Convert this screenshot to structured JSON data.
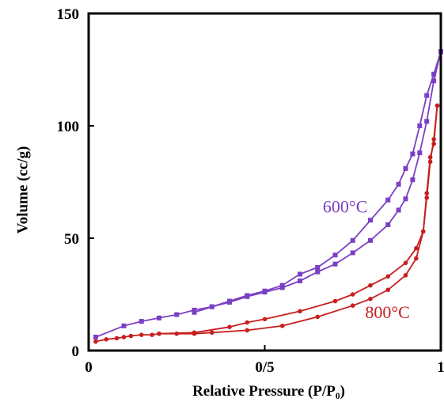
{
  "chart_data": {
    "type": "line",
    "title": "",
    "xlabel": "Relative Pressure (P/P₀)",
    "ylabel": "Volume (cc/g)",
    "xlim": [
      0,
      1
    ],
    "ylim": [
      0,
      150
    ],
    "x_tick_labels": [
      {
        "value": 0,
        "label": "0"
      },
      {
        "value": 0.5,
        "label": "0/5"
      },
      {
        "value": 1,
        "label": "1"
      }
    ],
    "y_tick_labels": [
      {
        "value": 0,
        "label": "0"
      },
      {
        "value": 50,
        "label": "50"
      },
      {
        "value": 100,
        "label": "100"
      },
      {
        "value": 150,
        "label": "150"
      }
    ],
    "grid": false,
    "series": [
      {
        "name": "600°C",
        "color": "#7b3fc4",
        "marker": "square",
        "adsorption": [
          [
            0.02,
            6
          ],
          [
            0.1,
            11
          ],
          [
            0.15,
            13
          ],
          [
            0.2,
            14.5
          ],
          [
            0.25,
            16
          ],
          [
            0.3,
            18
          ],
          [
            0.35,
            19.5
          ],
          [
            0.4,
            21.5
          ],
          [
            0.45,
            24
          ],
          [
            0.5,
            26
          ],
          [
            0.55,
            28
          ],
          [
            0.6,
            31
          ],
          [
            0.65,
            35
          ],
          [
            0.7,
            38.5
          ],
          [
            0.75,
            43.5
          ],
          [
            0.8,
            49
          ],
          [
            0.85,
            56
          ],
          [
            0.88,
            62.5
          ],
          [
            0.9,
            67.5
          ],
          [
            0.92,
            76
          ],
          [
            0.94,
            88
          ],
          [
            0.96,
            102
          ],
          [
            0.98,
            120
          ],
          [
            1.0,
            133
          ]
        ],
        "desorption": [
          [
            1.0,
            133
          ],
          [
            0.98,
            123
          ],
          [
            0.96,
            113.5
          ],
          [
            0.94,
            100
          ],
          [
            0.92,
            87.5
          ],
          [
            0.9,
            81
          ],
          [
            0.88,
            74
          ],
          [
            0.85,
            67
          ],
          [
            0.8,
            58
          ],
          [
            0.75,
            49
          ],
          [
            0.7,
            42.5
          ],
          [
            0.65,
            37
          ],
          [
            0.6,
            34
          ],
          [
            0.55,
            29
          ],
          [
            0.5,
            26.5
          ],
          [
            0.45,
            24.5
          ],
          [
            0.4,
            22
          ],
          [
            0.35,
            19.5
          ],
          [
            0.3,
            17
          ]
        ]
      },
      {
        "name": "800°C",
        "color": "#c81e1e",
        "marker": "circle",
        "adsorption": [
          [
            0.02,
            4
          ],
          [
            0.05,
            5
          ],
          [
            0.08,
            5.5
          ],
          [
            0.1,
            6
          ],
          [
            0.12,
            6.5
          ],
          [
            0.15,
            7
          ],
          [
            0.18,
            7
          ],
          [
            0.2,
            7.5
          ],
          [
            0.25,
            7.5
          ],
          [
            0.3,
            7.5
          ],
          [
            0.35,
            8
          ],
          [
            0.45,
            9
          ],
          [
            0.55,
            11
          ],
          [
            0.65,
            15
          ],
          [
            0.75,
            20
          ],
          [
            0.8,
            23
          ],
          [
            0.85,
            27
          ],
          [
            0.9,
            33.5
          ],
          [
            0.93,
            41
          ],
          [
            0.95,
            53
          ],
          [
            0.96,
            70
          ],
          [
            0.97,
            86
          ],
          [
            0.98,
            92
          ],
          [
            0.99,
            109
          ]
        ],
        "desorption": [
          [
            0.99,
            109
          ],
          [
            0.98,
            94
          ],
          [
            0.97,
            84
          ],
          [
            0.96,
            68
          ],
          [
            0.95,
            53
          ],
          [
            0.93,
            45.5
          ],
          [
            0.9,
            39
          ],
          [
            0.85,
            33
          ],
          [
            0.8,
            29
          ],
          [
            0.75,
            25
          ],
          [
            0.7,
            22
          ],
          [
            0.6,
            17.5
          ],
          [
            0.5,
            14
          ],
          [
            0.45,
            12.5
          ],
          [
            0.4,
            10.5
          ],
          [
            0.3,
            8
          ],
          [
            0.2,
            7.5
          ]
        ]
      }
    ]
  }
}
